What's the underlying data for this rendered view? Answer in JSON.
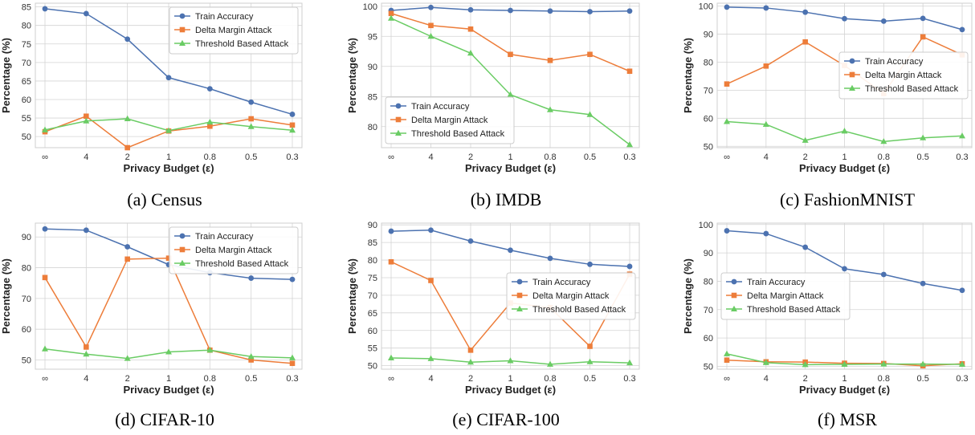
{
  "colors": {
    "train": "#4C72B0",
    "delta": "#ED7D3A",
    "threshold": "#6ACC64",
    "grid": "#d4d4d4",
    "frame": "#cfcfcf"
  },
  "chart_data": [
    {
      "type": "line",
      "caption": "(a) Census",
      "xlabel": "Privacy Budget (ε)",
      "ylabel": "Percentage (%)",
      "categories": [
        "∞",
        "4",
        "2",
        "1",
        "0.8",
        "0.5",
        "0.3"
      ],
      "yticks": [
        50,
        55,
        60,
        65,
        70,
        75,
        80,
        85
      ],
      "ylim": [
        47,
        86
      ],
      "legend_position": "top-right",
      "grid": true,
      "series": [
        {
          "name": "Train Accuracy",
          "color": "train",
          "marker": "circle",
          "values": [
            84.5,
            83.2,
            76.3,
            65.9,
            62.9,
            59.3,
            56.0
          ]
        },
        {
          "name": "Delta Margin Attack",
          "color": "delta",
          "marker": "square",
          "values": [
            51.3,
            55.5,
            47.0,
            51.5,
            52.8,
            54.8,
            53.1
          ]
        },
        {
          "name": "Threshold Based Attack",
          "color": "threshold",
          "marker": "triangle",
          "values": [
            51.8,
            54.2,
            54.8,
            51.6,
            53.9,
            52.7,
            51.7
          ]
        }
      ]
    },
    {
      "type": "line",
      "caption": "(b) IMDB",
      "xlabel": "Privacy Budget (ε)",
      "ylabel": "Percentage (%)",
      "categories": [
        "∞",
        "4",
        "2",
        "1",
        "0.8",
        "0.5",
        "0.3"
      ],
      "yticks": [
        80,
        85,
        90,
        95,
        100
      ],
      "ylim": [
        76.5,
        100.5
      ],
      "legend_position": "bottom-left",
      "grid": true,
      "series": [
        {
          "name": "Train Accuracy",
          "color": "train",
          "marker": "circle",
          "values": [
            99.3,
            99.8,
            99.4,
            99.3,
            99.2,
            99.1,
            99.2
          ]
        },
        {
          "name": "Delta Margin Attack",
          "color": "delta",
          "marker": "square",
          "values": [
            98.8,
            96.8,
            96.2,
            92.0,
            91.0,
            92.0,
            89.2
          ]
        },
        {
          "name": "Threshold Based Attack",
          "color": "threshold",
          "marker": "triangle",
          "values": [
            98.0,
            95.0,
            92.2,
            85.3,
            82.8,
            82.0,
            77.0
          ]
        }
      ]
    },
    {
      "type": "line",
      "caption": "(c) FashionMNIST",
      "xlabel": "Privacy Budget (ε)",
      "ylabel": "Percentage (%)",
      "categories": [
        "∞",
        "4",
        "2",
        "1",
        "0.8",
        "0.5",
        "0.3"
      ],
      "yticks": [
        50,
        60,
        70,
        80,
        90,
        100
      ],
      "ylim": [
        49.5,
        101
      ],
      "legend_position": "center-right",
      "grid": true,
      "series": [
        {
          "name": "Train Accuracy",
          "color": "train",
          "marker": "circle",
          "values": [
            99.6,
            99.3,
            97.8,
            95.5,
            94.6,
            95.6,
            91.6
          ]
        },
        {
          "name": "Delta Margin Attack",
          "color": "delta",
          "marker": "square",
          "values": [
            72.2,
            78.6,
            87.2,
            78.8,
            68.8,
            89.0,
            82.6
          ]
        },
        {
          "name": "Threshold Based Attack",
          "color": "threshold",
          "marker": "triangle",
          "values": [
            58.8,
            57.8,
            52.1,
            55.4,
            51.7,
            53.0,
            53.7
          ]
        }
      ]
    },
    {
      "type": "line",
      "caption": "(d) CIFAR-10",
      "xlabel": "Privacy Budget (ε)",
      "ylabel": "Percentage (%)",
      "categories": [
        "∞",
        "4",
        "2",
        "1",
        "0.8",
        "0.5",
        "0.3"
      ],
      "yticks": [
        50,
        60,
        70,
        80,
        90
      ],
      "ylim": [
        47,
        94.5
      ],
      "legend_position": "top-right",
      "grid": true,
      "series": [
        {
          "name": "Train Accuracy",
          "color": "train",
          "marker": "circle",
          "values": [
            92.6,
            92.2,
            86.8,
            81.0,
            78.4,
            76.6,
            76.2
          ]
        },
        {
          "name": "Delta Margin Attack",
          "color": "delta",
          "marker": "square",
          "values": [
            76.8,
            54.2,
            82.8,
            83.1,
            53.2,
            50.0,
            48.9
          ]
        },
        {
          "name": "Threshold Based Attack",
          "color": "threshold",
          "marker": "triangle",
          "values": [
            53.6,
            51.9,
            50.5,
            52.6,
            53.2,
            51.1,
            50.7
          ]
        }
      ]
    },
    {
      "type": "line",
      "caption": "(e) CIFAR-100",
      "xlabel": "Privacy Budget (ε)",
      "ylabel": "Percentage (%)",
      "categories": [
        "∞",
        "4",
        "2",
        "1",
        "0.8",
        "0.5",
        "0.3"
      ],
      "yticks": [
        50,
        55,
        60,
        65,
        70,
        75,
        80,
        85,
        90
      ],
      "ylim": [
        49,
        90.5
      ],
      "legend_position": "center-right",
      "grid": true,
      "series": [
        {
          "name": "Train Accuracy",
          "color": "train",
          "marker": "circle",
          "values": [
            88.2,
            88.5,
            85.4,
            82.8,
            80.5,
            78.8,
            78.2
          ]
        },
        {
          "name": "Delta Margin Attack",
          "color": "delta",
          "marker": "square",
          "values": [
            79.5,
            74.2,
            54.4,
            67.8,
            66.5,
            55.5,
            76.0
          ]
        },
        {
          "name": "Threshold Based Attack",
          "color": "threshold",
          "marker": "triangle",
          "values": [
            52.2,
            52.0,
            51.0,
            51.4,
            50.4,
            51.1,
            50.8
          ]
        }
      ]
    },
    {
      "type": "line",
      "caption": "(f) MSR",
      "xlabel": "Privacy Budget (ε)",
      "ylabel": "Percentage (%)",
      "categories": [
        "∞",
        "4",
        "2",
        "1",
        "0.8",
        "0.5",
        "0.3"
      ],
      "yticks": [
        50,
        60,
        70,
        80,
        90,
        100
      ],
      "ylim": [
        49,
        100.5
      ],
      "legend_position": "center-left",
      "grid": true,
      "series": [
        {
          "name": "Train Accuracy",
          "color": "train",
          "marker": "circle",
          "values": [
            97.8,
            96.8,
            92.0,
            84.4,
            82.4,
            79.2,
            76.8
          ]
        },
        {
          "name": "Delta Margin Attack",
          "color": "delta",
          "marker": "square",
          "values": [
            52.2,
            51.6,
            51.5,
            51.1,
            51.0,
            50.2,
            50.9
          ]
        },
        {
          "name": "Threshold Based Attack",
          "color": "threshold",
          "marker": "triangle",
          "values": [
            54.4,
            51.3,
            50.6,
            50.7,
            50.8,
            50.8,
            50.7
          ]
        }
      ]
    }
  ]
}
